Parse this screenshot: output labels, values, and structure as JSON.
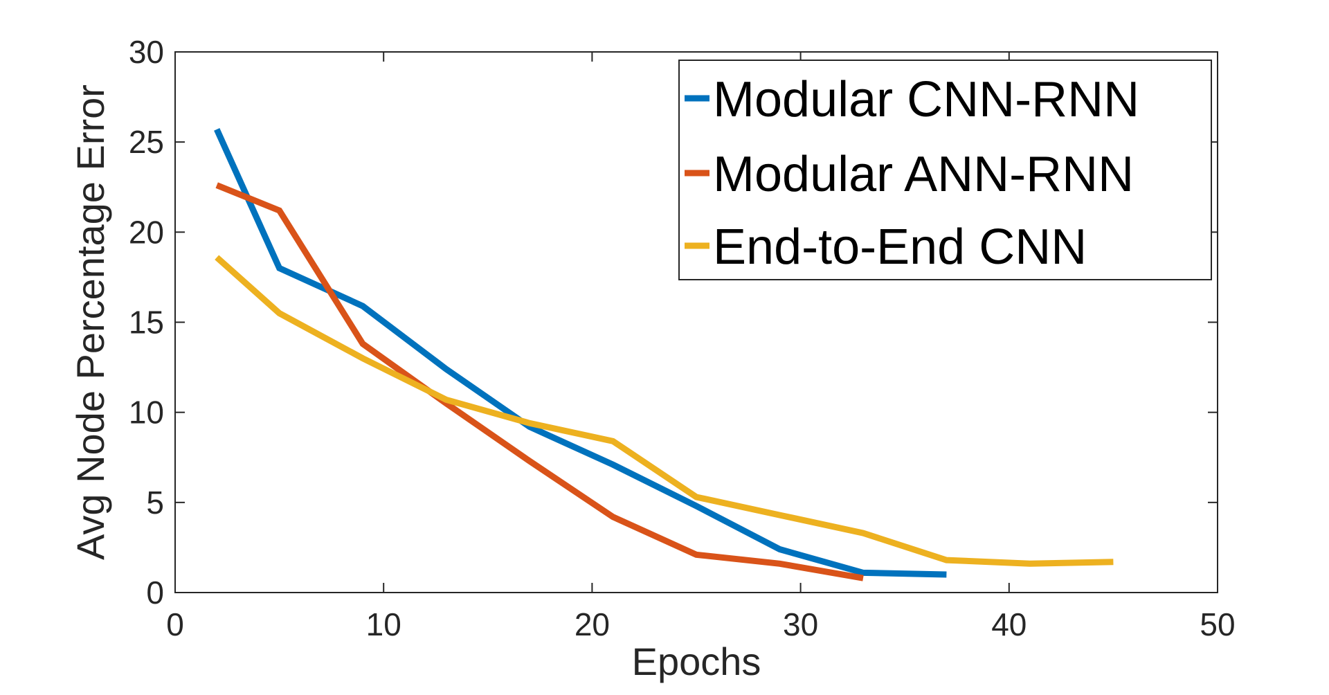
{
  "chart_data": {
    "type": "line",
    "xlabel": "Epochs",
    "ylabel": "Avg Node Percentage Error",
    "xlim": [
      0,
      50
    ],
    "ylim": [
      0,
      30
    ],
    "xticks": [
      0,
      10,
      20,
      30,
      40,
      50
    ],
    "yticks": [
      0,
      5,
      10,
      15,
      20,
      25,
      30
    ],
    "grid": false,
    "legend_position": "top-right",
    "series": [
      {
        "name": "Modular CNN-RNN",
        "color": "#0072BD",
        "x": [
          2,
          5,
          9,
          13,
          17,
          21,
          25,
          29,
          33,
          37
        ],
        "y": [
          25.7,
          18.0,
          15.9,
          12.4,
          9.2,
          7.1,
          4.8,
          2.4,
          1.1,
          1.0
        ]
      },
      {
        "name": "Modular ANN-RNN",
        "color": "#D95319",
        "x": [
          2,
          5,
          9,
          13,
          17,
          21,
          25,
          29,
          33
        ],
        "y": [
          22.6,
          21.2,
          13.8,
          10.5,
          7.3,
          4.2,
          2.1,
          1.6,
          0.8
        ]
      },
      {
        "name": "End-to-End CNN",
        "color": "#EDB120",
        "x": [
          2,
          5,
          9,
          13,
          17,
          21,
          25,
          29,
          33,
          37,
          41,
          45
        ],
        "y": [
          18.6,
          15.5,
          13.0,
          10.7,
          9.4,
          8.4,
          5.3,
          4.3,
          3.3,
          1.8,
          1.6,
          1.7
        ]
      }
    ]
  }
}
